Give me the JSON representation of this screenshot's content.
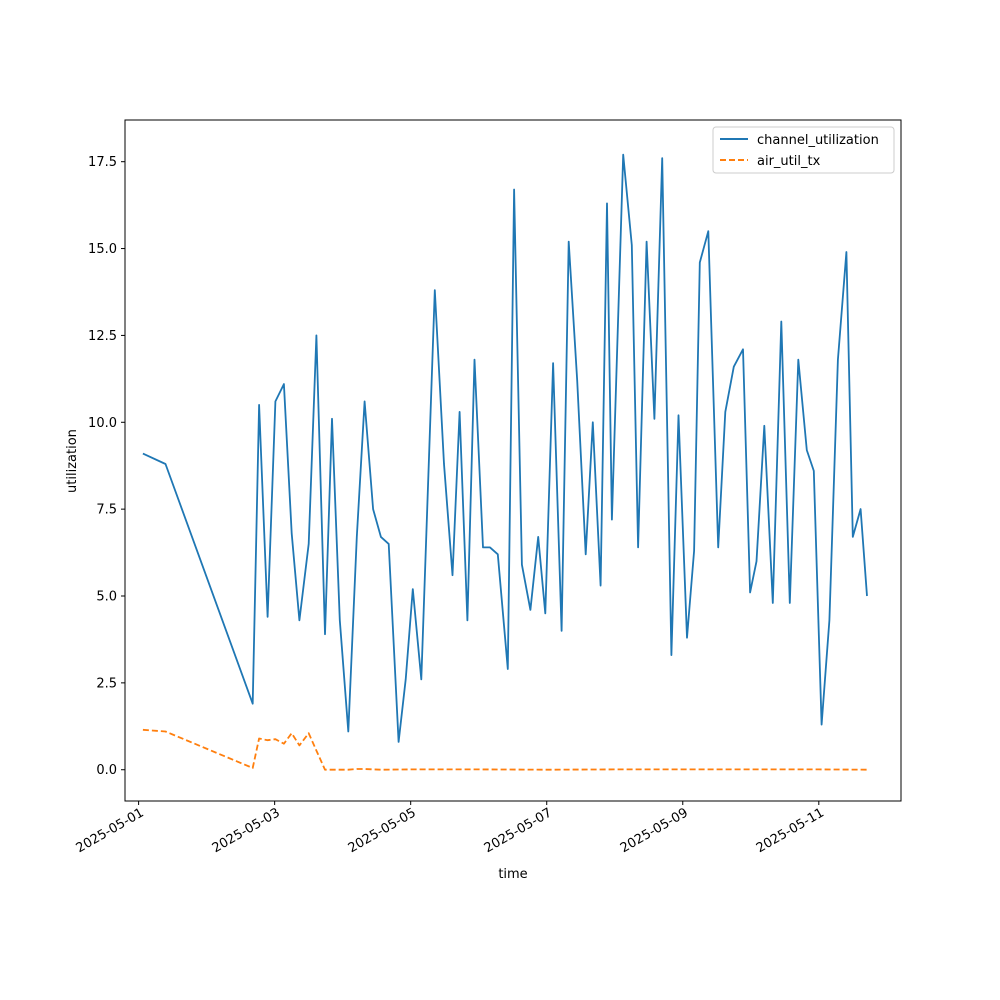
{
  "chart_data": {
    "type": "line",
    "xlabel": "time",
    "ylabel": "utilization",
    "xlim": [
      "2025-04-30T19:12",
      "2025-05-12T05:00"
    ],
    "ylim": [
      -0.9,
      18.7
    ],
    "x_tick_labels": [
      "2025-05-01",
      "2025-05-03",
      "2025-05-05",
      "2025-05-07",
      "2025-05-09",
      "2025-05-11"
    ],
    "x_ticks": [
      "2025-05-01T00:00",
      "2025-05-03T00:00",
      "2025-05-05T00:00",
      "2025-05-07T00:00",
      "2025-05-09T00:00",
      "2025-05-11T00:00"
    ],
    "y_tick_labels": [
      "0.0",
      "2.5",
      "5.0",
      "7.5",
      "10.0",
      "12.5",
      "15.0",
      "17.5"
    ],
    "y_ticks": [
      0,
      2.5,
      5,
      7.5,
      10,
      12.5,
      15,
      17.5
    ],
    "legend_position": "top-right",
    "grid": false,
    "series": [
      {
        "name": "channel_utilization",
        "color": "#1f77b4",
        "style": "solid",
        "x": [
          "2025-05-01T01:30",
          "2025-05-01T09:30",
          "2025-05-02T16:15",
          "2025-05-02T18:30",
          "2025-05-02T21:30",
          "2025-05-03T00:15",
          "2025-05-03T03:15",
          "2025-05-03T06:00",
          "2025-05-03T08:45",
          "2025-05-03T12:00",
          "2025-05-03T14:45",
          "2025-05-03T17:45",
          "2025-05-03T20:15",
          "2025-05-03T23:00",
          "2025-05-04T02:00",
          "2025-05-04T05:00",
          "2025-05-04T07:45",
          "2025-05-04T10:45",
          "2025-05-04T13:30",
          "2025-05-04T16:15",
          "2025-05-04T19:45",
          "2025-05-04T22:15",
          "2025-05-05T00:45",
          "2025-05-05T03:45",
          "2025-05-05T08:30",
          "2025-05-05T11:45",
          "2025-05-05T14:45",
          "2025-05-05T17:15",
          "2025-05-05T20:00",
          "2025-05-05T22:30",
          "2025-05-06T01:30",
          "2025-05-06T04:00",
          "2025-05-06T06:45",
          "2025-05-06T10:15",
          "2025-05-06T12:30",
          "2025-05-06T15:15",
          "2025-05-06T18:15",
          "2025-05-06T21:00",
          "2025-05-06T23:30",
          "2025-05-07T02:15",
          "2025-05-07T05:15",
          "2025-05-07T07:45",
          "2025-05-07T10:45",
          "2025-05-07T13:45",
          "2025-05-07T16:15",
          "2025-05-07T19:00",
          "2025-05-07T21:15",
          "2025-05-07T23:00",
          "2025-05-08T03:00",
          "2025-05-08T06:00",
          "2025-05-08T08:15",
          "2025-05-08T11:15",
          "2025-05-08T14:00",
          "2025-05-08T16:45",
          "2025-05-08T20:00",
          "2025-05-08T22:30",
          "2025-05-09T01:30",
          "2025-05-09T04:00",
          "2025-05-09T06:00",
          "2025-05-09T09:00",
          "2025-05-09T12:30",
          "2025-05-09T15:00",
          "2025-05-09T18:00",
          "2025-05-09T21:15",
          "2025-05-09T23:45",
          "2025-05-10T02:00",
          "2025-05-10T04:45",
          "2025-05-10T07:45",
          "2025-05-10T10:45",
          "2025-05-10T13:45",
          "2025-05-10T16:45",
          "2025-05-10T19:45",
          "2025-05-10T22:15",
          "2025-05-11T01:00",
          "2025-05-11T03:45",
          "2025-05-11T06:45",
          "2025-05-11T09:45",
          "2025-05-11T12:00",
          "2025-05-11T14:45",
          "2025-05-11T17:00"
        ],
        "y": [
          9.1,
          8.8,
          1.9,
          10.5,
          4.4,
          10.6,
          11.1,
          6.8,
          4.3,
          6.5,
          12.5,
          3.9,
          10.1,
          4.3,
          1.1,
          6.7,
          10.6,
          7.5,
          6.7,
          6.5,
          0.8,
          2.6,
          5.2,
          2.6,
          13.8,
          8.8,
          5.6,
          10.3,
          4.3,
          11.8,
          6.4,
          6.4,
          6.2,
          2.9,
          16.7,
          5.9,
          4.6,
          6.7,
          4.5,
          11.7,
          4.0,
          15.2,
          11.2,
          6.2,
          10.0,
          5.3,
          16.3,
          7.2,
          17.7,
          15.1,
          6.4,
          15.2,
          10.1,
          17.6,
          3.3,
          10.2,
          3.8,
          6.3,
          14.6,
          15.5,
          6.4,
          10.3,
          11.6,
          12.1,
          5.1,
          6.0,
          9.9,
          4.8,
          12.9,
          4.8,
          11.8,
          9.2,
          8.6,
          1.3,
          4.3,
          11.8,
          14.9,
          6.7,
          7.5,
          5.0
        ]
      },
      {
        "name": "air_util_tx",
        "color": "#ff7f0e",
        "style": "dashed",
        "x": [
          "2025-05-01T01:30",
          "2025-05-01T09:30",
          "2025-05-02T16:15",
          "2025-05-02T18:30",
          "2025-05-02T21:30",
          "2025-05-03T00:15",
          "2025-05-03T03:15",
          "2025-05-03T06:00",
          "2025-05-03T08:45",
          "2025-05-03T12:00",
          "2025-05-03T14:45",
          "2025-05-03T17:45",
          "2025-05-03T20:15",
          "2025-05-03T23:00",
          "2025-05-04T02:00",
          "2025-05-04T05:00",
          "2025-05-04T07:45",
          "2025-05-04T10:45",
          "2025-05-04T13:30",
          "2025-05-05T00:00",
          "2025-05-06T00:00",
          "2025-05-07T00:00",
          "2025-05-08T00:00",
          "2025-05-09T00:00",
          "2025-05-10T00:00",
          "2025-05-11T00:00",
          "2025-05-11T17:00"
        ],
        "y": [
          1.15,
          1.1,
          0.05,
          0.9,
          0.85,
          0.88,
          0.75,
          1.05,
          0.7,
          1.05,
          0.55,
          0.0,
          0.0,
          0.0,
          0.0,
          0.02,
          0.02,
          0.01,
          0.0,
          0.01,
          0.01,
          0.0,
          0.01,
          0.01,
          0.01,
          0.01,
          0.0
        ]
      }
    ]
  }
}
